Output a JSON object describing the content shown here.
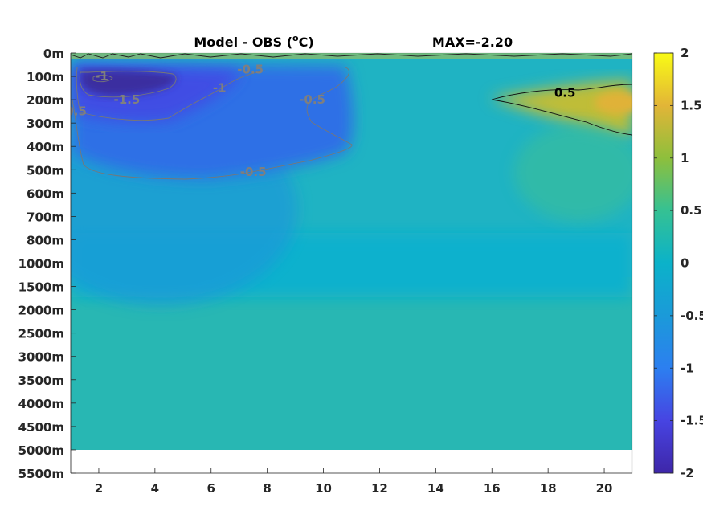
{
  "chart_data": {
    "type": "heatmap",
    "title": "Model - OBS (°C)",
    "title_prefix": "Model - OBS (",
    "title_sup": "o",
    "title_suffix": "C)",
    "annotation": "MAX=-2.20",
    "x_ticks": [
      2,
      4,
      6,
      8,
      10,
      12,
      14,
      16,
      18,
      20
    ],
    "xlim": [
      1,
      21
    ],
    "y_tick_labels": [
      "0m",
      "100m",
      "200m",
      "300m",
      "400m",
      "500m",
      "600m",
      "700m",
      "800m",
      "1000m",
      "1500m",
      "2000m",
      "2500m",
      "3000m",
      "3500m",
      "4000m",
      "4500m",
      "5000m",
      "5500m"
    ],
    "no_data_below": "5000m",
    "colorbar": {
      "clim": [
        -2,
        2
      ],
      "ticks": [
        2,
        1.5,
        1,
        0.5,
        0,
        -0.5,
        -1,
        -1.5,
        -2
      ],
      "tick_labels": [
        "2",
        "1.5",
        "1",
        "0.5",
        "0",
        "-0.5",
        "-1",
        "-1.5",
        "-2"
      ],
      "colormap": "parula"
    },
    "contour_labels": [
      {
        "text": "-1",
        "x": 2.1,
        "level": 1,
        "color": "#7f7f7f"
      },
      {
        "text": "-1.5",
        "x": 3.0,
        "level": 2,
        "color": "#7f7f7f"
      },
      {
        "text": "-0.5",
        "x": 7.4,
        "level": 0.7,
        "color": "#7f7f7f"
      },
      {
        "text": "-1",
        "x": 6.3,
        "level": 1.5,
        "color": "#7f7f7f"
      },
      {
        "text": "-0.5",
        "x": 9.6,
        "level": 2.0,
        "color": "#7f7f7f"
      },
      {
        "text": "-0.5",
        "x": 1.1,
        "level": 2.5,
        "color": "#7f7f7f"
      },
      {
        "text": "-0.5",
        "x": 7.5,
        "level": 5.1,
        "color": "#7f7f7f"
      },
      {
        "text": "0.5",
        "x": 18.6,
        "level": 1.7,
        "color": "#000000"
      }
    ],
    "features": {
      "cold_anomaly": {
        "x_range": [
          1,
          11
        ],
        "level_range": [
          0.8,
          5.2
        ],
        "min": -2.2,
        "core": {
          "x": 3,
          "level": 1.2
        }
      },
      "warm_anomaly": {
        "x_range": [
          16,
          21
        ],
        "level_range": [
          1.4,
          3.5
        ],
        "max": 1.0
      }
    }
  }
}
